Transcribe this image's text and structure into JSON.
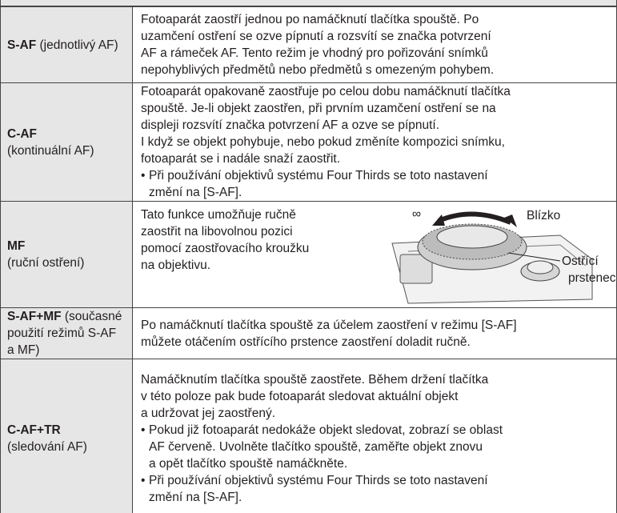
{
  "table": {
    "rows": [
      {
        "label": [
          [
            "S-AF",
            " (jednotlivý AF)"
          ]
        ],
        "text": [
          "Fotoaparát zaostří jednou po namáčknutí tlačítka spouště. Po",
          "uzamčení ostření se ozve pípnutí a rozsvítí se značka potvrzení",
          "AF a rámeček AF. Tento režim je vhodný pro pořizování snímků",
          "nepohyblivých předmětů nebo předmětů s omezeným pohybem."
        ],
        "bullets": []
      },
      {
        "label": [
          [
            "C-AF"
          ],
          [
            "(kontinuální AF)"
          ]
        ],
        "text": [
          "Fotoaparát opakovaně zaostřuje po celou dobu namáčknutí tlačítka",
          "spouště. Je-li objekt zaostřen, při prvním uzamčení ostření se na",
          "displeji rozsvítí značka potvrzení AF a ozve se pípnutí.",
          "I když se objekt pohybuje, nebo pokud změníte kompozici snímku,",
          "fotoaparát se i nadále snaží zaostřit."
        ],
        "bullets": [
          [
            "Při používání objektivů systému Four Thirds se toto nastavení",
            "změní na [S-AF]."
          ]
        ]
      },
      {
        "label": [
          [
            "MF"
          ],
          [
            "(ruční ostření)"
          ]
        ],
        "text": [
          "Tato funkce umožňuje ručně",
          "zaostřit na libovolnou pozici",
          "pomocí zaostřovacího kroužku",
          "na objektivu."
        ],
        "bullets": [],
        "image_labels": {
          "infinity": "∞",
          "near": "Blízko",
          "ring": [
            "Ostřící",
            "prstenec"
          ]
        }
      },
      {
        "label": [
          [
            "S-AF+MF",
            " (současné"
          ],
          [
            "použití režimů S-AF"
          ],
          [
            "a MF)"
          ]
        ],
        "text": [
          "Po namáčknutí tlačítka spouště za účelem zaostření v režimu [S-AF]",
          "můžete otáčením ostřícího prstence zaostření doladit ručně."
        ],
        "bullets": []
      },
      {
        "label": [
          [
            "C-AF+TR"
          ],
          [
            "(sledování AF)"
          ]
        ],
        "text": [
          "Namáčknutím tlačítka spouště zaostřete. Během držení tlačítka",
          "v této poloze pak bude fotoaparát sledovat aktuální objekt",
          "a udržovat jej zaostřený."
        ],
        "bullets": [
          [
            "Pokud již fotoaparát nedokáže objekt sledovat, zobrazí se oblast",
            "AF červeně. Uvolněte tlačítko spouště, zaměřte objekt znovu",
            "a opět tlačítko spouště namáčkněte."
          ],
          [
            "Při používání objektivů systému Four Thirds se toto nastavení",
            "změní na [S-AF]."
          ]
        ]
      }
    ]
  }
}
